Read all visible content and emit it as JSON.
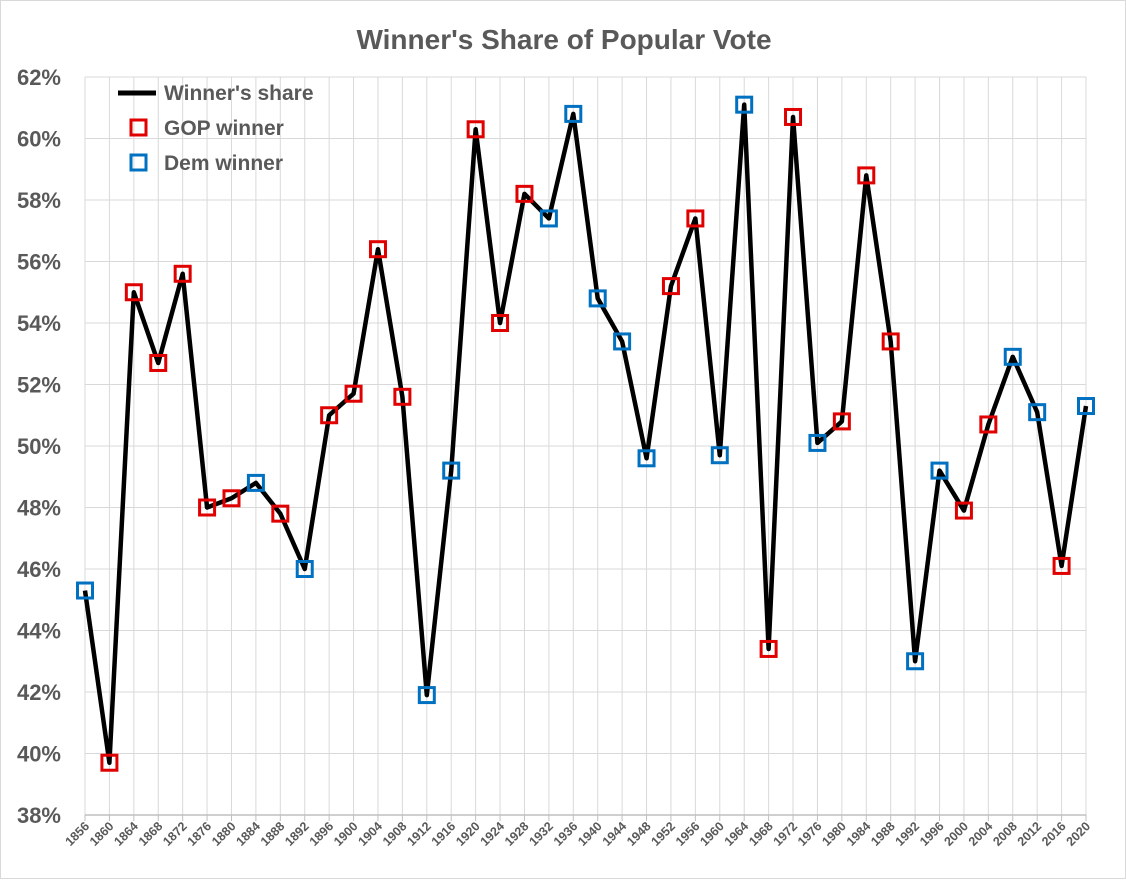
{
  "chart_data": {
    "type": "line",
    "title": "Winner's Share of Popular Vote",
    "xlabel": "",
    "ylabel": "",
    "ylim": [
      0.38,
      0.62
    ],
    "y_ticks": [
      0.38,
      0.4,
      0.42,
      0.44,
      0.46,
      0.48,
      0.5,
      0.52,
      0.54,
      0.56,
      0.58,
      0.6,
      0.62
    ],
    "y_tick_labels": [
      "38%",
      "40%",
      "42%",
      "44%",
      "46%",
      "48%",
      "50%",
      "52%",
      "54%",
      "56%",
      "58%",
      "60%",
      "62%"
    ],
    "grid": true,
    "legend_position": "top-left",
    "x": [
      "1856",
      "1860",
      "1864",
      "1868",
      "1872",
      "1876",
      "1880",
      "1884",
      "1888",
      "1892",
      "1896",
      "1900",
      "1904",
      "1908",
      "1912",
      "1916",
      "1920",
      "1924",
      "1928",
      "1932",
      "1936",
      "1940",
      "1944",
      "1948",
      "1952",
      "1956",
      "1960",
      "1964",
      "1968",
      "1972",
      "1976",
      "1980",
      "1984",
      "1988",
      "1992",
      "1996",
      "2000",
      "2004",
      "2008",
      "2012",
      "2016",
      "2020"
    ],
    "series": [
      {
        "name": "Winner's share",
        "color": "#000000",
        "values": [
          0.453,
          0.397,
          0.55,
          0.527,
          0.556,
          0.48,
          0.483,
          0.488,
          0.478,
          0.46,
          0.51,
          0.517,
          0.564,
          0.516,
          0.419,
          0.492,
          0.603,
          0.54,
          0.582,
          0.574,
          0.608,
          0.548,
          0.534,
          0.496,
          0.552,
          0.574,
          0.497,
          0.611,
          0.434,
          0.607,
          0.501,
          0.508,
          0.588,
          0.534,
          0.43,
          0.492,
          0.479,
          0.507,
          0.529,
          0.511,
          0.461,
          0.513
        ]
      }
    ],
    "markers": [
      {
        "name": "GOP winner",
        "color": "#e00000",
        "party_by_point": "R"
      },
      {
        "name": "Dem winner",
        "color": "#0070c0",
        "party_by_point": "D"
      }
    ],
    "winner_party": [
      "D",
      "R",
      "R",
      "R",
      "R",
      "R",
      "R",
      "D",
      "R",
      "D",
      "R",
      "R",
      "R",
      "R",
      "D",
      "D",
      "R",
      "R",
      "R",
      "D",
      "D",
      "D",
      "D",
      "D",
      "R",
      "R",
      "D",
      "D",
      "R",
      "R",
      "D",
      "R",
      "R",
      "R",
      "D",
      "D",
      "R",
      "R",
      "D",
      "D",
      "R",
      "D"
    ]
  }
}
